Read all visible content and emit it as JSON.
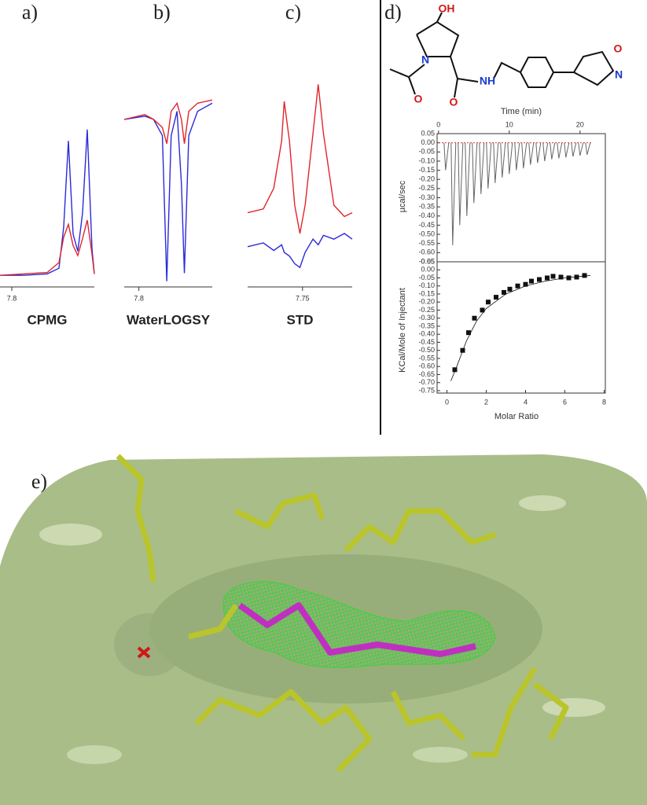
{
  "panel_labels": [
    "a)",
    "b)",
    "c)",
    "d)",
    "e)"
  ],
  "structure": {
    "atoms": [
      "OH",
      "N",
      "O",
      "O",
      "NH",
      "O",
      "N"
    ]
  },
  "chart_data": [
    {
      "type": "line",
      "xlabel": "CPMG",
      "x": [
        7.805,
        7.795,
        7.785,
        7.78,
        7.778,
        7.776,
        7.774,
        7.772,
        7.77,
        7.768,
        7.766,
        7.765
      ],
      "xlim": [
        7.805,
        7.765
      ],
      "xticks": [
        7.8
      ],
      "ylim": [
        0,
        1.1
      ],
      "series": [
        {
          "color": "#2b2bd9",
          "values": [
            0.01,
            0.01,
            0.02,
            0.06,
            0.35,
            0.96,
            0.3,
            0.18,
            0.45,
            1.04,
            0.2,
            0.02
          ]
        },
        {
          "color": "#e0252b",
          "values": [
            0.01,
            0.02,
            0.03,
            0.1,
            0.28,
            0.37,
            0.22,
            0.15,
            0.27,
            0.4,
            0.16,
            0.02
          ]
        }
      ]
    },
    {
      "type": "line",
      "xlabel": "WaterLOGSY",
      "x": [
        7.805,
        7.798,
        7.795,
        7.792,
        7.7905,
        7.789,
        7.787,
        7.7855,
        7.7845,
        7.783,
        7.78,
        7.775
      ],
      "xlim": [
        7.805,
        7.775
      ],
      "xticks": [
        7.8
      ],
      "ylim": [
        -1.05,
        0.15
      ],
      "series": [
        {
          "color": "#2b2bd9",
          "values": [
            0,
            0.02,
            0,
            -0.1,
            -1.0,
            -0.1,
            0.05,
            -0.4,
            -0.95,
            -0.1,
            0.05,
            0.1
          ]
        },
        {
          "color": "#e0252b",
          "values": [
            0,
            0.03,
            0,
            -0.05,
            -0.15,
            0.05,
            0.1,
            0,
            -0.15,
            0.05,
            0.1,
            0.12
          ]
        }
      ]
    },
    {
      "type": "line",
      "xlabel": "STD",
      "x": [
        7.771,
        7.765,
        7.761,
        7.758,
        7.757,
        7.755,
        7.753,
        7.751,
        7.749,
        7.746,
        7.744,
        7.742,
        7.738,
        7.734,
        7.731
      ],
      "xlim": [
        7.771,
        7.731
      ],
      "xticks": [
        7.75
      ],
      "ylim": [
        0,
        1
      ],
      "series": [
        {
          "color": "#2b2bd9",
          "values": [
            0.13,
            0.15,
            0.11,
            0.14,
            0.1,
            0.08,
            0.04,
            0.02,
            0.1,
            0.17,
            0.14,
            0.19,
            0.17,
            0.2,
            0.17
          ]
        },
        {
          "color": "#e0252b",
          "values": [
            0.31,
            0.33,
            0.44,
            0.69,
            0.9,
            0.69,
            0.35,
            0.2,
            0.35,
            0.73,
            0.99,
            0.73,
            0.35,
            0.29,
            0.31
          ]
        }
      ]
    },
    {
      "type": "spike",
      "xlabel": "Time (min)",
      "ylabel": "µcal/sec",
      "color": "#666",
      "x": [
        1,
        2,
        3,
        4,
        5,
        6,
        7,
        8,
        9,
        10,
        11,
        12,
        13,
        14,
        15,
        16,
        17,
        18,
        19,
        20,
        21
      ],
      "values": [
        -0.15,
        -0.56,
        -0.45,
        -0.4,
        -0.33,
        -0.28,
        -0.25,
        -0.22,
        -0.19,
        -0.17,
        -0.15,
        -0.14,
        -0.12,
        -0.11,
        -0.1,
        -0.09,
        -0.085,
        -0.08,
        -0.075,
        -0.07,
        -0.065
      ],
      "xlim": [
        -0.2,
        23.58
      ],
      "xticks": [
        0,
        10,
        20
      ],
      "ylim": [
        -0.65,
        0.05
      ],
      "yticks": [
        0.05,
        {
          "value": 0,
          "label": "0.00"
        },
        -0.05,
        {
          "value": -0.1,
          "label": "-0.10"
        },
        -0.15,
        {
          "value": -0.2,
          "label": "-0.20"
        },
        -0.25,
        {
          "value": -0.3,
          "label": "-0.30"
        },
        -0.35,
        {
          "value": -0.4,
          "label": "-0.40"
        },
        -0.45,
        {
          "value": -0.5,
          "label": "-0.50"
        },
        -0.55,
        {
          "value": -0.6,
          "label": "-0.60"
        },
        -0.65
      ]
    },
    {
      "type": "scatter",
      "xlabel": "Molar Ratio",
      "ylabel": "KCal/Mole of Injectant",
      "xlim": [
        -0.5,
        8.06
      ],
      "xticks": [
        0,
        2,
        4,
        6,
        8
      ],
      "ylim": [
        -0.765,
        0.05
      ],
      "yticks": [
        0.05,
        {
          "value": 0,
          "label": "0.00"
        },
        -0.05,
        {
          "value": -0.1,
          "label": "-0.10"
        },
        -0.15,
        {
          "value": -0.2,
          "label": "-0.20"
        },
        -0.25,
        {
          "value": -0.3,
          "label": "-0.30"
        },
        -0.35,
        {
          "value": -0.4,
          "label": "-0.40"
        },
        -0.45,
        {
          "value": -0.5,
          "label": "-0.50"
        },
        -0.55,
        {
          "value": -0.6,
          "label": "-0.60"
        },
        -0.65,
        {
          "value": -0.7,
          "label": "-0.70"
        },
        -0.75
      ],
      "series": [
        {
          "marker": "square",
          "color": "#111",
          "x": [
            0.4,
            0.8,
            1.1,
            1.4,
            1.8,
            2.1,
            2.5,
            2.9,
            3.2,
            3.6,
            4.0,
            4.3,
            4.7,
            5.1,
            5.4,
            5.8,
            6.2,
            6.6,
            7.0
          ],
          "values": [
            -0.62,
            -0.5,
            -0.39,
            -0.3,
            -0.25,
            -0.2,
            -0.17,
            -0.14,
            -0.12,
            -0.1,
            -0.09,
            -0.07,
            -0.06,
            -0.05,
            -0.04,
            -0.045,
            -0.05,
            -0.045,
            -0.035
          ]
        },
        {
          "marker": "line",
          "color": "#111",
          "x": [
            0.2,
            0.5,
            1,
            1.5,
            2,
            3,
            4,
            5,
            6,
            7.3
          ],
          "values": [
            -0.69,
            -0.6,
            -0.44,
            -0.32,
            -0.24,
            -0.15,
            -0.1,
            -0.07,
            -0.05,
            -0.035
          ]
        }
      ]
    }
  ]
}
